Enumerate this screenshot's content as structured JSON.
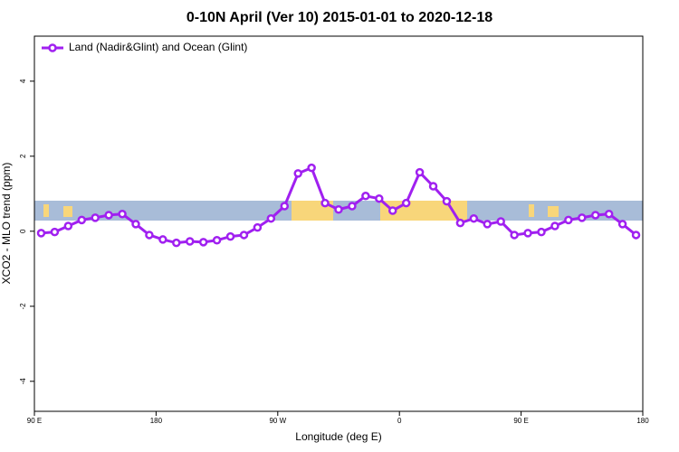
{
  "chart_data": {
    "type": "line",
    "title": "0-10N April (Ver 10)   2015-01-01 to 2020-12-18",
    "xlabel": "Longitude (deg E)",
    "ylabel": "XCO2 - MLO trend (ppm)",
    "x": [
      95,
      105,
      115,
      125,
      135,
      145,
      155,
      165,
      175,
      185,
      195,
      205,
      215,
      225,
      235,
      245,
      255,
      265,
      275,
      285,
      295,
      305,
      315,
      325,
      335,
      345,
      355,
      365,
      375,
      385,
      395,
      405,
      415,
      425,
      435,
      445,
      455,
      465,
      475,
      485,
      495,
      505,
      515,
      525,
      535
    ],
    "series": [
      {
        "name": "Land (Nadir&Glint) and Ocean (Glint)",
        "color": "#a020f0",
        "values": [
          -0.05,
          -0.02,
          0.14,
          0.3,
          0.36,
          0.43,
          0.46,
          0.19,
          -0.1,
          -0.22,
          -0.31,
          -0.27,
          -0.29,
          -0.24,
          -0.14,
          -0.1,
          0.1,
          0.34,
          0.67,
          1.54,
          1.69,
          0.75,
          0.58,
          0.67,
          0.94,
          0.87,
          0.55,
          0.75,
          1.57,
          1.2,
          0.8,
          0.22,
          0.34,
          0.19,
          0.26,
          -0.1,
          -0.05,
          -0.02,
          0.14,
          0.3,
          0.36,
          0.43,
          0.46,
          0.19,
          -0.1
        ]
      }
    ],
    "xlim": [
      90,
      540
    ],
    "xticks": [
      {
        "value": 90,
        "label": "90 E"
      },
      180,
      {
        "value": 270,
        "label": "90 W"
      },
      {
        "value": 360,
        "label": "0"
      },
      {
        "value": 450,
        "label": "90 E"
      },
      {
        "value": 540,
        "label": "180"
      }
    ],
    "ylim": [
      -4.8,
      5.2
    ],
    "yticks": [
      -4,
      -2,
      0,
      2,
      4
    ],
    "legend": "top-left"
  }
}
